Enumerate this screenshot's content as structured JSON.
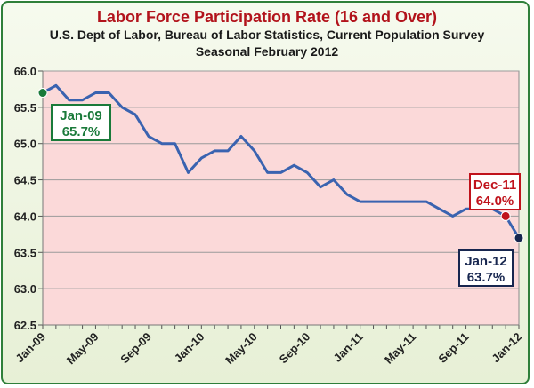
{
  "title": "Labor Force Participation Rate  (16 and Over)",
  "subtitle": "U.S. Dept of Labor, Bureau of Labor Statistics, Current Population Survey",
  "subtitle2": "Seasonal February 2012",
  "colors": {
    "line": "#3a63b0",
    "plot_bg": "#fbd9d9",
    "start": "#1a7a3a",
    "mid": "#c0121b",
    "end": "#17264f"
  },
  "chart_data": {
    "type": "line",
    "title": "Labor Force Participation Rate  (16 and Over)",
    "xlabel": "",
    "ylabel": "",
    "ylim": [
      62.5,
      66.0
    ],
    "yticks": [
      62.5,
      63.0,
      63.5,
      64.0,
      64.5,
      65.0,
      65.5,
      66.0
    ],
    "ytick_labels": [
      "62.5",
      "63.0",
      "63.5",
      "64.0",
      "64.5",
      "65.0",
      "65.5",
      "66.0"
    ],
    "xtick_labels": [
      "Jan-09",
      "May-09",
      "Sep-09",
      "Jan-10",
      "May-10",
      "Sep-10",
      "Jan-11",
      "May-11",
      "Sep-11",
      "Jan-12"
    ],
    "grid": true,
    "series": [
      {
        "name": "Labor Force Participation Rate",
        "x": [
          "Jan-09",
          "Feb-09",
          "Mar-09",
          "Apr-09",
          "May-09",
          "Jun-09",
          "Jul-09",
          "Aug-09",
          "Sep-09",
          "Oct-09",
          "Nov-09",
          "Dec-09",
          "Jan-10",
          "Feb-10",
          "Mar-10",
          "Apr-10",
          "May-10",
          "Jun-10",
          "Jul-10",
          "Aug-10",
          "Sep-10",
          "Oct-10",
          "Nov-10",
          "Dec-10",
          "Jan-11",
          "Feb-11",
          "Mar-11",
          "Apr-11",
          "May-11",
          "Jun-11",
          "Jul-11",
          "Aug-11",
          "Sep-11",
          "Oct-11",
          "Nov-11",
          "Dec-11",
          "Jan-12"
        ],
        "values": [
          65.7,
          65.8,
          65.6,
          65.6,
          65.7,
          65.7,
          65.5,
          65.4,
          65.1,
          65.0,
          65.0,
          64.6,
          64.8,
          64.9,
          64.9,
          65.1,
          64.9,
          64.6,
          64.6,
          64.7,
          64.6,
          64.4,
          64.5,
          64.3,
          64.2,
          64.2,
          64.2,
          64.2,
          64.2,
          64.2,
          64.1,
          64.0,
          64.1,
          64.1,
          64.1,
          64.0,
          63.7
        ]
      }
    ],
    "annotations": [
      {
        "label": "Jan-09",
        "value_text": "65.7%",
        "index": 0,
        "color_key": "start"
      },
      {
        "label": "Dec-11",
        "value_text": "64.0%",
        "index": 35,
        "color_key": "mid"
      },
      {
        "label": "Jan-12",
        "value_text": "63.7%",
        "index": 36,
        "color_key": "end"
      }
    ]
  }
}
